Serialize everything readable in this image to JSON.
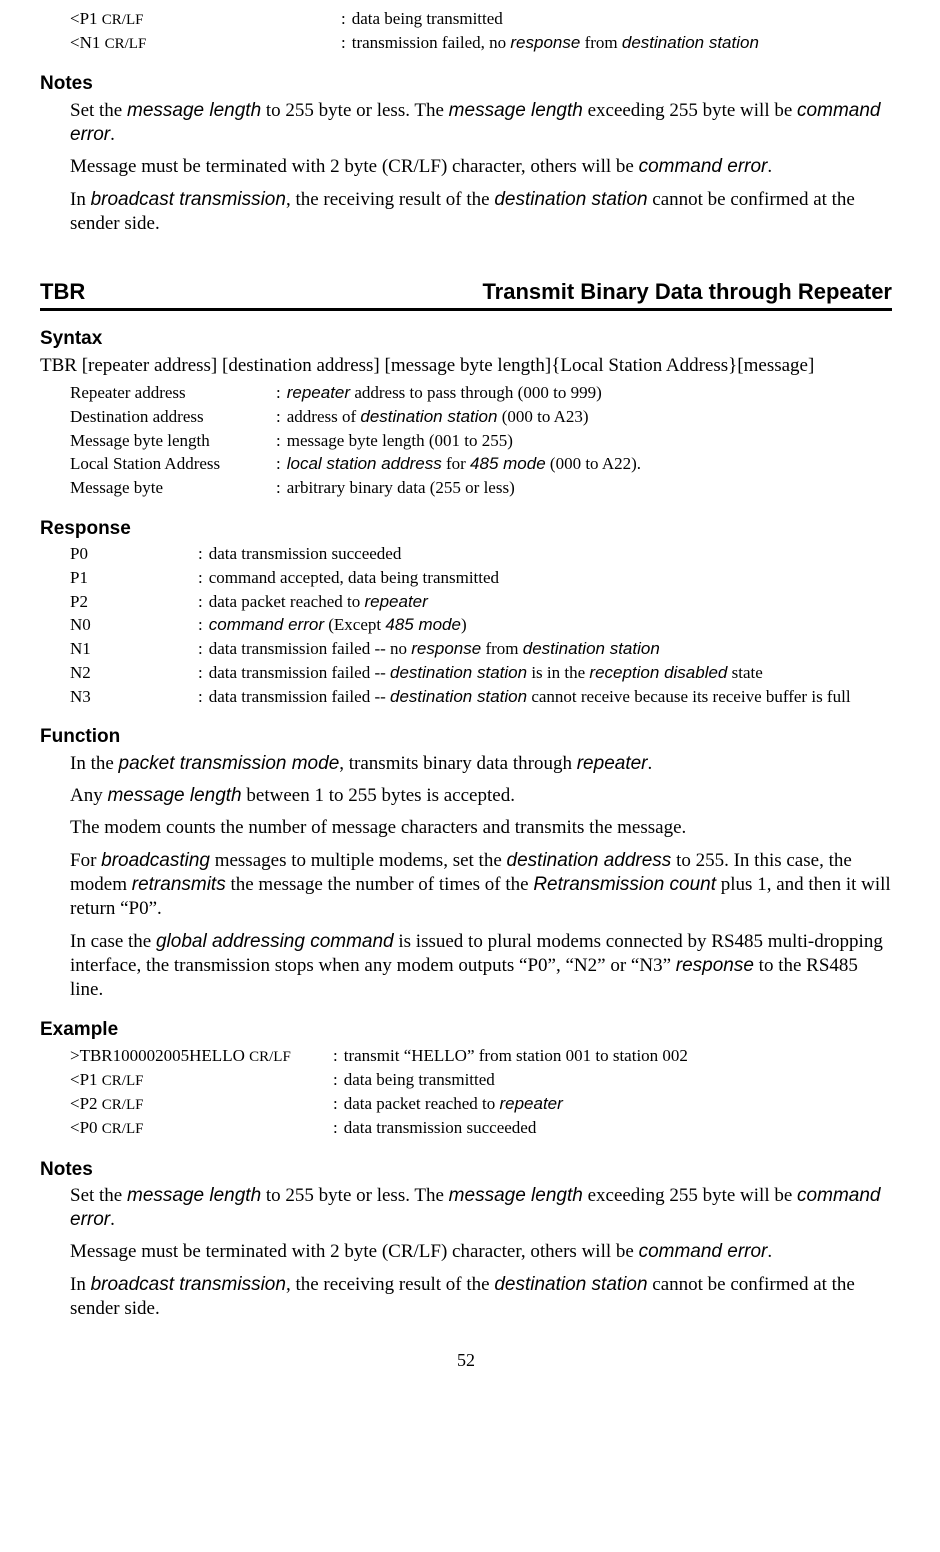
{
  "topExample": {
    "rows": [
      {
        "term_pre": "<P1 ",
        "term_small": "CR/LF",
        "desc": "data being transmitted"
      },
      {
        "term_pre": "<N1 ",
        "term_small": "CR/LF",
        "desc_parts": [
          "transmission failed, no ",
          "response",
          " from ",
          "destination station"
        ]
      }
    ],
    "termWidth": "263px"
  },
  "notes1": {
    "heading": "Notes",
    "paras": [
      [
        "Set the ",
        "message length",
        " to 255 byte or less. The ",
        "message length",
        " exceeding 255 byte will be ",
        "command error",
        "."
      ],
      [
        "Message must be terminated with 2 byte (CR/LF) character, others will be ",
        "command error",
        "."
      ],
      [
        "In ",
        "broadcast transmission",
        ", the receiving result of the ",
        "destination station",
        " cannot be confirmed at the sender side."
      ]
    ]
  },
  "tbr": {
    "left": "TBR",
    "right": "Transmit Binary Data through Repeater"
  },
  "syntax": {
    "heading": "Syntax",
    "line": "TBR [repeater address] [destination address] [message byte length]{Local Station Address}[message]",
    "rows": [
      {
        "term": "Repeater address",
        "parts": [
          "",
          "repeater",
          " address to pass through (000 to 999)"
        ]
      },
      {
        "term": "Destination address",
        "parts": [
          "address of ",
          "destination station",
          " (000 to A23)"
        ]
      },
      {
        "term": "Message byte length",
        "parts": [
          "message byte length (001 to 255)"
        ]
      },
      {
        "term": "Local Station Address",
        "parts": [
          "",
          "local station address",
          " for ",
          "485 mode",
          " (000 to A22)."
        ]
      },
      {
        "term": "Message byte",
        "parts": [
          "arbitrary binary data (255 or less)"
        ]
      }
    ],
    "termWidth": "198px"
  },
  "response": {
    "heading": "Response",
    "rows": [
      {
        "term": "P0",
        "parts": [
          "data transmission succeeded"
        ]
      },
      {
        "term": "P1",
        "parts": [
          "command accepted, data being transmitted"
        ]
      },
      {
        "term": "P2",
        "parts": [
          "data packet reached to ",
          "repeater"
        ]
      },
      {
        "term": "N0",
        "parts": [
          "",
          "command error",
          " (Except ",
          "485 mode",
          ")"
        ]
      },
      {
        "term": "N1",
        "parts": [
          "data transmission failed -- no ",
          "response",
          " from ",
          "destination station"
        ]
      },
      {
        "term": "N2",
        "parts": [
          "data transmission failed -- ",
          "destination station",
          " is in the ",
          "reception disabled",
          " state"
        ]
      },
      {
        "term": "N3",
        "parts": [
          "data transmission failed -- ",
          "destination station",
          " cannot receive because its receive buffer is full"
        ]
      }
    ],
    "termWidth": "120px"
  },
  "function": {
    "heading": "Function",
    "paras": [
      [
        "In the ",
        "packet transmission mode",
        ", transmits binary data through ",
        "repeater",
        "."
      ],
      [
        "Any ",
        "message length",
        " between 1 to 255 bytes is accepted.",
        "__SPLIT__",
        "The modem counts the number of message characters and transmits the message.",
        "__SPLIT__",
        "For ",
        "broadcasting",
        " messages to multiple modems, set the ",
        "destination address",
        " to 255. In this case, the modem ",
        "retransmits",
        " the message the number of times of the ",
        "Retransmission count",
        " plus 1, and then it will return “P0”.",
        "__SPLIT__",
        "In case the ",
        "global addressing command",
        " is issued to plural modems connected by RS485 multi-dropping interface, the transmission stops when any modem outputs “P0”, “N2” or “N3” ",
        "response",
        " to the RS485 line."
      ]
    ]
  },
  "example": {
    "heading": "Example",
    "rows": [
      {
        "term_pre": ">TBR100002005HELLO ",
        "term_small": "CR/LF",
        "desc": "transmit “HELLO” from station 001 to station 002"
      },
      {
        "term_pre": "<P1 ",
        "term_small": "CR/LF",
        "desc": "data being transmitted"
      },
      {
        "term_pre": "<P2 ",
        "term_small": "CR/LF",
        "desc_parts": [
          "data packet reached to ",
          "repeater"
        ]
      },
      {
        "term_pre": "<P0 ",
        "term_small": "CR/LF",
        "desc": "data transmission succeeded"
      }
    ],
    "termWidth": "255px"
  },
  "notes2": {
    "heading": "Notes",
    "paras": [
      [
        "Set the ",
        "message length",
        " to 255 byte or less. The ",
        "message length",
        " exceeding 255 byte will be ",
        "command error",
        "."
      ],
      [
        "Message must be terminated with 2 byte (CR/LF) character, others will be ",
        "command error",
        "."
      ],
      [
        "In ",
        "broadcast transmission",
        ", the receiving result of the ",
        "destination station",
        " cannot be confirmed at the sender side."
      ]
    ]
  },
  "pageNumber": "52"
}
